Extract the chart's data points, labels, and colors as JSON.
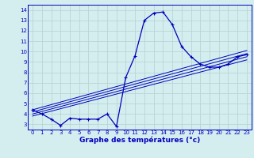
{
  "xlabel": "Graphe des températures (°c)",
  "background_color": "#d4eef0",
  "grid_color": "#b8d4d4",
  "line_color": "#0000bb",
  "hours": [
    0,
    1,
    2,
    3,
    4,
    5,
    6,
    7,
    8,
    9,
    10,
    11,
    12,
    13,
    14,
    15,
    16,
    17,
    18,
    19,
    20,
    21,
    22,
    23
  ],
  "temps": [
    4.4,
    4.0,
    3.5,
    2.9,
    3.6,
    3.5,
    3.5,
    3.5,
    4.0,
    2.8,
    7.5,
    9.6,
    13.0,
    13.7,
    13.8,
    12.6,
    10.5,
    9.5,
    8.8,
    8.5,
    8.5,
    8.8,
    9.5,
    9.7
  ],
  "ylim": [
    2.5,
    14.5
  ],
  "xlim": [
    -0.5,
    23.5
  ],
  "yticks": [
    3,
    4,
    5,
    6,
    7,
    8,
    9,
    10,
    11,
    12,
    13,
    14
  ],
  "xticks": [
    0,
    1,
    2,
    3,
    4,
    5,
    6,
    7,
    8,
    9,
    10,
    11,
    12,
    13,
    14,
    15,
    16,
    17,
    18,
    19,
    20,
    21,
    22,
    23
  ],
  "trend_lines": [
    {
      "x0": 0,
      "y0": 3.8,
      "x1": 23,
      "y1": 9.2
    },
    {
      "x0": 0,
      "y0": 4.0,
      "x1": 23,
      "y1": 9.5
    },
    {
      "x0": 0,
      "y0": 4.2,
      "x1": 23,
      "y1": 9.8
    },
    {
      "x0": 0,
      "y0": 4.4,
      "x1": 23,
      "y1": 10.1
    }
  ]
}
